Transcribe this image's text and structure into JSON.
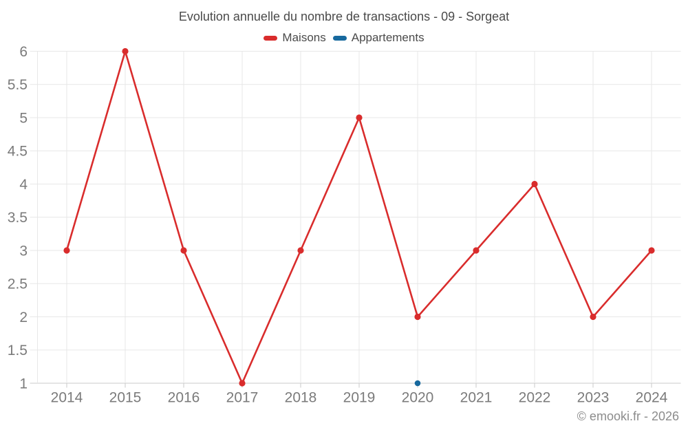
{
  "footer": {
    "copyright": "© emooki.fr - 2026"
  },
  "chart_data": {
    "type": "line",
    "title": "Evolution annuelle du nombre de transactions - 09 - Sorgeat",
    "categories": [
      "2014",
      "2015",
      "2016",
      "2017",
      "2018",
      "2019",
      "2020",
      "2021",
      "2022",
      "2023",
      "2024"
    ],
    "series": [
      {
        "name": "Maisons",
        "color": "#d92c2c",
        "values": [
          3,
          6,
          3,
          1,
          3,
          5,
          2,
          3,
          4,
          2,
          3
        ],
        "marker_radius": 4.6,
        "line_width": 2.6
      },
      {
        "name": "Appartements",
        "color": "#17699e",
        "values": [
          null,
          null,
          null,
          null,
          null,
          null,
          1,
          null,
          null,
          null,
          null
        ],
        "marker_radius": 4.3,
        "line_width": 2.6
      }
    ],
    "ylim": [
      1,
      6
    ],
    "ytick_step": 0.5,
    "ytick_labels": [
      "1",
      "1.5",
      "2",
      "2.5",
      "3",
      "3.5",
      "4",
      "4.5",
      "5",
      "5.5",
      "6"
    ],
    "grid": true,
    "legend_position": "top",
    "colors": {
      "grid_line": "#e7e7e7",
      "axis_line": "#c9c9c9",
      "axis_label": "#7b7b7b",
      "title_text": "#4a4a4a",
      "copyright_text": "#8c8c8c"
    }
  }
}
